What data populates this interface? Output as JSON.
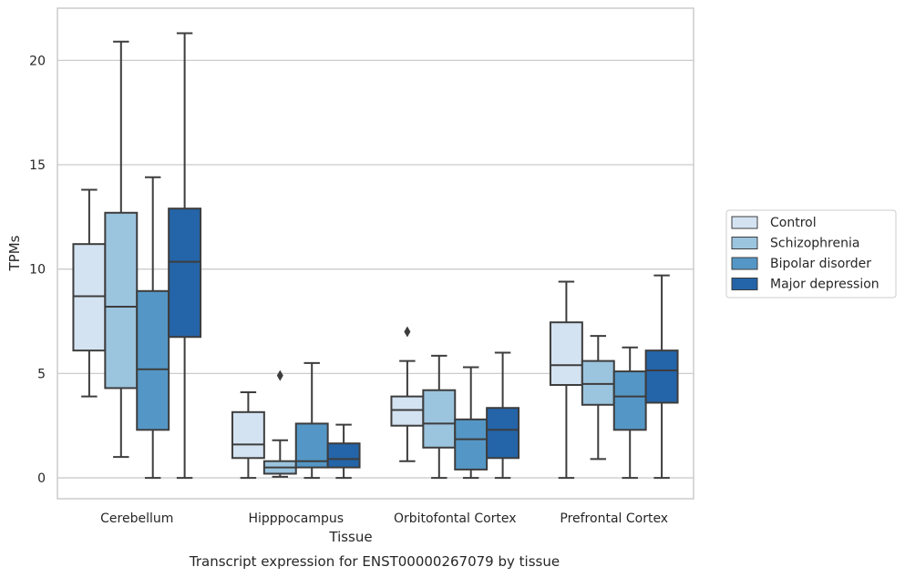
{
  "chart_data": {
    "type": "box",
    "caption": "Transcript expression for ENST00000267079 by tissue",
    "xlabel": "Tissue",
    "ylabel": "TPMs",
    "ylim": [
      -1,
      22.5
    ],
    "yticks": [
      0,
      5,
      10,
      15,
      20
    ],
    "grid": "horizontal",
    "legend_position": "right",
    "categories": [
      "Cerebellum",
      "Hipppocampus",
      "Orbitofontal Cortex",
      "Prefrontal Cortex"
    ],
    "series": [
      {
        "name": "Control",
        "color": "#d4e3f2",
        "boxes": [
          {
            "whisker_low": 3.9,
            "q1": 6.1,
            "median": 8.7,
            "q3": 11.2,
            "whisker_high": 13.8,
            "outliers": []
          },
          {
            "whisker_low": 0.0,
            "q1": 0.95,
            "median": 1.6,
            "q3": 3.15,
            "whisker_high": 4.1,
            "outliers": []
          },
          {
            "whisker_low": 0.8,
            "q1": 2.5,
            "median": 3.25,
            "q3": 3.9,
            "whisker_high": 5.6,
            "outliers": [
              7.0
            ]
          },
          {
            "whisker_low": 0.0,
            "q1": 4.45,
            "median": 5.4,
            "q3": 7.45,
            "whisker_high": 9.4,
            "outliers": []
          }
        ]
      },
      {
        "name": "Schizophrenia",
        "color": "#9bc4de",
        "boxes": [
          {
            "whisker_low": 1.0,
            "q1": 4.3,
            "median": 8.2,
            "q3": 12.7,
            "whisker_high": 20.9,
            "outliers": []
          },
          {
            "whisker_low": 0.05,
            "q1": 0.2,
            "median": 0.5,
            "q3": 0.8,
            "whisker_high": 1.8,
            "outliers": [
              4.9
            ]
          },
          {
            "whisker_low": 0.0,
            "q1": 1.45,
            "median": 2.6,
            "q3": 4.2,
            "whisker_high": 5.85,
            "outliers": []
          },
          {
            "whisker_low": 0.9,
            "q1": 3.5,
            "median": 4.5,
            "q3": 5.6,
            "whisker_high": 6.8,
            "outliers": []
          }
        ]
      },
      {
        "name": "Bipolar disorder",
        "color": "#5497c6",
        "boxes": [
          {
            "whisker_low": 0.0,
            "q1": 2.3,
            "median": 5.2,
            "q3": 8.95,
            "whisker_high": 14.4,
            "outliers": []
          },
          {
            "whisker_low": 0.0,
            "q1": 0.5,
            "median": 0.8,
            "q3": 2.6,
            "whisker_high": 5.5,
            "outliers": []
          },
          {
            "whisker_low": 0.0,
            "q1": 0.4,
            "median": 1.85,
            "q3": 2.8,
            "whisker_high": 5.3,
            "outliers": []
          },
          {
            "whisker_low": 0.0,
            "q1": 2.3,
            "median": 3.9,
            "q3": 5.1,
            "whisker_high": 6.25,
            "outliers": []
          }
        ]
      },
      {
        "name": "Major depression",
        "color": "#2464a8",
        "boxes": [
          {
            "whisker_low": 0.0,
            "q1": 6.75,
            "median": 10.35,
            "q3": 12.9,
            "whisker_high": 21.3,
            "outliers": []
          },
          {
            "whisker_low": 0.0,
            "q1": 0.5,
            "median": 0.9,
            "q3": 1.65,
            "whisker_high": 2.55,
            "outliers": []
          },
          {
            "whisker_low": 0.0,
            "q1": 0.95,
            "median": 2.3,
            "q3": 3.35,
            "whisker_high": 6.0,
            "outliers": []
          },
          {
            "whisker_low": 0.0,
            "q1": 3.6,
            "median": 5.15,
            "q3": 6.1,
            "whisker_high": 9.7,
            "outliers": []
          }
        ]
      }
    ]
  }
}
